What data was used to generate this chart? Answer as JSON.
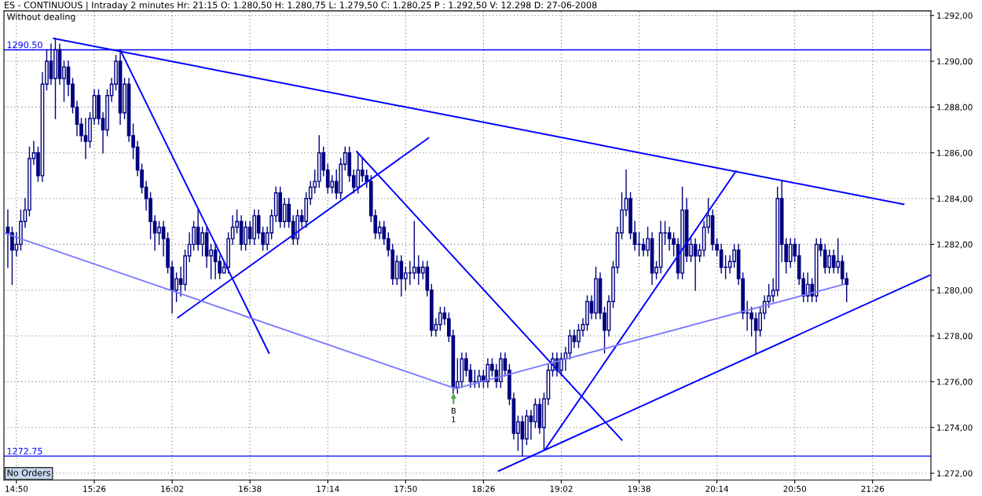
{
  "chart_data": {
    "type": "candlestick",
    "title": "ES - CONTINUOUS | Intraday 2 minutes Hr: 21:15 O: 1.280,50 H: 1.280,75 L: 1.279,50 C: 1.280,25 P : 1.292,50 V: 12.298 D: 27-06-2008",
    "series": [
      {
        "color": "#000080",
        "x": [
          14.7667,
          14.8,
          14.8333,
          14.8667,
          14.9,
          14.9333,
          14.9667,
          15.0,
          15.0333,
          15.0667,
          15.1,
          15.1333,
          15.1667,
          15.2,
          15.2333,
          15.2667,
          15.3,
          15.3333,
          15.3667,
          15.4,
          15.4333,
          15.4667,
          15.5,
          15.5333,
          15.5667,
          15.6,
          15.6333,
          15.6667,
          15.7,
          15.7333,
          15.7667,
          15.8,
          15.8333,
          15.8667,
          15.9,
          15.9333,
          15.9667,
          16.0,
          16.0333,
          16.0667,
          16.1,
          16.1333,
          16.1667,
          16.2,
          16.2333,
          16.2667,
          16.3,
          16.3333,
          16.3667,
          16.4,
          16.4333,
          16.4667,
          16.5,
          16.5333,
          16.5667,
          16.6,
          16.6333,
          16.6667,
          16.7,
          16.7333,
          16.7667,
          16.8,
          16.8333,
          16.8667,
          16.9,
          16.9333,
          16.9667,
          17.0,
          17.0333,
          17.0667,
          17.1,
          17.1333,
          17.1667,
          17.2,
          17.2333,
          17.2667,
          17.3,
          17.3333,
          17.3667,
          17.4,
          17.4333,
          17.4667,
          17.5,
          17.5333,
          17.5667,
          17.6,
          17.6333,
          17.6667,
          17.7,
          17.7333,
          17.7667,
          17.8,
          17.8333,
          17.8667,
          17.9,
          17.9333,
          17.9667,
          18.0,
          18.0333,
          18.0667,
          18.1,
          18.1333,
          18.1667,
          18.2,
          18.2333,
          18.2667,
          18.3,
          18.3333,
          18.3667,
          18.4,
          18.4333,
          18.4667,
          18.5,
          18.5333,
          18.5667,
          18.6,
          18.6333,
          18.6667,
          18.7,
          18.7333,
          18.7667,
          18.8,
          18.8333,
          18.8667,
          18.9,
          18.9333,
          18.9667,
          19.0,
          19.0333,
          19.0667,
          19.1,
          19.1333,
          19.1667,
          19.2,
          19.2333,
          19.2667,
          19.3,
          19.3333,
          19.3667,
          19.4,
          19.4333,
          19.4667,
          19.5,
          19.5333,
          19.5667,
          19.6,
          19.6333,
          19.6667,
          19.7,
          19.7333,
          19.7667,
          19.8,
          19.8333,
          19.8667,
          19.9,
          19.9333,
          19.9667,
          20.0,
          20.0333,
          20.0667,
          20.1,
          20.1333,
          20.1667,
          20.2,
          20.2333,
          20.2667,
          20.3,
          20.3333,
          20.3667,
          20.4,
          20.4333,
          20.4667,
          20.5,
          20.5333,
          20.5667,
          20.6,
          20.6333,
          20.6667,
          20.7,
          20.7333,
          20.7667,
          20.8,
          20.8333,
          20.8667,
          20.9,
          20.9333,
          20.9667,
          21.0,
          21.0333,
          21.0667,
          21.1,
          21.1333,
          21.1667,
          21.2,
          21.2333
        ],
        "ohlc": [
          [
            1282.75,
            1283.5,
            1281.0,
            1282.5
          ],
          [
            1282.5,
            1282.75,
            1280.25,
            1281.75
          ],
          [
            1281.75,
            1282.5,
            1281.5,
            1282.0
          ],
          [
            1282.0,
            1283.5,
            1281.75,
            1283.0
          ],
          [
            1283.0,
            1284.0,
            1282.75,
            1283.5
          ],
          [
            1283.5,
            1286.25,
            1283.25,
            1285.75
          ],
          [
            1285.75,
            1286.5,
            1285.5,
            1286.0
          ],
          [
            1286.0,
            1286.25,
            1284.75,
            1285.0
          ],
          [
            1285.0,
            1289.5,
            1284.75,
            1289.0
          ],
          [
            1289.0,
            1290.5,
            1288.75,
            1290.0
          ],
          [
            1290.0,
            1290.75,
            1289.0,
            1289.25
          ],
          [
            1289.25,
            1291.0,
            1287.5,
            1290.5
          ],
          [
            1290.5,
            1290.75,
            1289.0,
            1289.25
          ],
          [
            1289.25,
            1290.0,
            1288.25,
            1289.75
          ],
          [
            1289.75,
            1290.0,
            1288.5,
            1289.0
          ],
          [
            1289.0,
            1289.25,
            1287.75,
            1288.0
          ],
          [
            1288.0,
            1288.25,
            1286.75,
            1287.25
          ],
          [
            1287.25,
            1287.5,
            1286.5,
            1286.75
          ],
          [
            1286.75,
            1287.5,
            1285.75,
            1286.5
          ],
          [
            1286.5,
            1287.75,
            1286.25,
            1287.5
          ],
          [
            1287.5,
            1288.75,
            1287.25,
            1288.5
          ],
          [
            1288.5,
            1288.75,
            1287.25,
            1287.5
          ],
          [
            1287.5,
            1287.75,
            1286.0,
            1287.0
          ],
          [
            1287.0,
            1288.75,
            1286.75,
            1288.5
          ],
          [
            1288.5,
            1289.25,
            1288.25,
            1289.0
          ],
          [
            1289.0,
            1290.25,
            1288.75,
            1290.0
          ],
          [
            1290.0,
            1290.5,
            1287.25,
            1287.75
          ],
          [
            1287.75,
            1289.25,
            1287.5,
            1289.0
          ],
          [
            1289.0,
            1289.25,
            1286.5,
            1286.75
          ],
          [
            1286.75,
            1287.25,
            1285.75,
            1286.25
          ],
          [
            1286.25,
            1286.5,
            1285.0,
            1285.25
          ],
          [
            1285.25,
            1285.5,
            1284.25,
            1284.5
          ],
          [
            1284.5,
            1284.75,
            1283.5,
            1284.0
          ],
          [
            1284.0,
            1284.25,
            1282.25,
            1283.0
          ],
          [
            1283.0,
            1283.25,
            1281.75,
            1282.5
          ],
          [
            1282.5,
            1283.0,
            1282.0,
            1282.75
          ],
          [
            1282.75,
            1283.0,
            1281.5,
            1282.25
          ],
          [
            1282.25,
            1282.5,
            1280.75,
            1281.0
          ],
          [
            1281.0,
            1281.25,
            1279.0,
            1280.0
          ],
          [
            1280.0,
            1280.75,
            1279.5,
            1280.5
          ],
          [
            1280.5,
            1281.0,
            1279.75,
            1280.25
          ],
          [
            1280.25,
            1281.75,
            1280.0,
            1281.5
          ],
          [
            1281.5,
            1282.5,
            1281.25,
            1282.0
          ],
          [
            1282.0,
            1283.0,
            1281.75,
            1282.75
          ],
          [
            1282.75,
            1283.5,
            1281.75,
            1282.0
          ],
          [
            1282.0,
            1282.75,
            1281.5,
            1282.5
          ],
          [
            1282.5,
            1282.75,
            1281.0,
            1281.5
          ],
          [
            1281.5,
            1282.0,
            1280.5,
            1281.75
          ],
          [
            1281.75,
            1282.0,
            1280.5,
            1281.25
          ],
          [
            1281.25,
            1281.5,
            1280.5,
            1280.75
          ],
          [
            1280.75,
            1281.25,
            1280.75,
            1281.0
          ],
          [
            1281.0,
            1282.5,
            1280.75,
            1282.25
          ],
          [
            1282.25,
            1283.25,
            1282.0,
            1282.75
          ],
          [
            1282.75,
            1283.5,
            1282.5,
            1283.0
          ],
          [
            1283.0,
            1283.25,
            1281.75,
            1282.0
          ],
          [
            1282.0,
            1283.0,
            1281.75,
            1282.75
          ],
          [
            1282.75,
            1283.0,
            1282.0,
            1282.25
          ],
          [
            1282.25,
            1283.5,
            1282.0,
            1283.25
          ],
          [
            1283.25,
            1283.5,
            1282.25,
            1282.5
          ],
          [
            1282.5,
            1282.75,
            1281.75,
            1282.0
          ],
          [
            1282.0,
            1282.75,
            1281.75,
            1282.5
          ],
          [
            1282.5,
            1283.5,
            1282.25,
            1283.25
          ],
          [
            1283.25,
            1284.5,
            1283.0,
            1284.25
          ],
          [
            1284.25,
            1284.5,
            1282.75,
            1283.0
          ],
          [
            1283.0,
            1284.0,
            1282.75,
            1283.75
          ],
          [
            1283.75,
            1284.0,
            1282.75,
            1283.0
          ],
          [
            1283.0,
            1283.25,
            1282.0,
            1282.25
          ],
          [
            1282.25,
            1283.5,
            1282.0,
            1283.25
          ],
          [
            1283.25,
            1283.5,
            1282.75,
            1283.0
          ],
          [
            1283.0,
            1284.25,
            1282.75,
            1284.0
          ],
          [
            1284.0,
            1284.75,
            1283.75,
            1284.5
          ],
          [
            1284.5,
            1285.25,
            1284.25,
            1284.75
          ],
          [
            1284.75,
            1286.75,
            1284.5,
            1286.0
          ],
          [
            1286.0,
            1286.25,
            1285.0,
            1285.25
          ],
          [
            1285.25,
            1285.5,
            1284.25,
            1284.5
          ],
          [
            1284.5,
            1285.0,
            1284.25,
            1284.75
          ],
          [
            1284.75,
            1285.25,
            1284.0,
            1284.25
          ],
          [
            1284.25,
            1285.75,
            1284.0,
            1285.5
          ],
          [
            1285.5,
            1286.25,
            1285.25,
            1286.0
          ],
          [
            1286.0,
            1286.25,
            1284.75,
            1285.0
          ],
          [
            1285.0,
            1285.25,
            1284.25,
            1284.5
          ],
          [
            1284.5,
            1286.0,
            1284.25,
            1285.25
          ],
          [
            1285.25,
            1285.75,
            1284.75,
            1285.0
          ],
          [
            1285.0,
            1285.25,
            1284.5,
            1284.75
          ],
          [
            1284.75,
            1285.0,
            1283.0,
            1283.25
          ],
          [
            1283.25,
            1283.5,
            1282.25,
            1282.5
          ],
          [
            1282.5,
            1283.0,
            1282.25,
            1282.75
          ],
          [
            1282.75,
            1283.0,
            1282.0,
            1282.25
          ],
          [
            1282.25,
            1282.5,
            1281.5,
            1281.75
          ],
          [
            1281.75,
            1282.0,
            1280.25,
            1280.5
          ],
          [
            1280.5,
            1281.5,
            1280.25,
            1281.25
          ],
          [
            1281.25,
            1281.5,
            1279.75,
            1280.5
          ],
          [
            1280.5,
            1281.0,
            1280.0,
            1280.75
          ],
          [
            1280.75,
            1281.25,
            1280.25,
            1280.75
          ],
          [
            1280.75,
            1283.0,
            1280.5,
            1281.0
          ],
          [
            1281.0,
            1281.5,
            1280.25,
            1280.75
          ],
          [
            1280.75,
            1281.25,
            1280.5,
            1281.0
          ],
          [
            1281.0,
            1281.25,
            1279.75,
            1280.0
          ],
          [
            1280.0,
            1280.25,
            1278.0,
            1278.25
          ],
          [
            1278.25,
            1278.75,
            1278.0,
            1278.5
          ],
          [
            1278.5,
            1279.25,
            1278.25,
            1279.0
          ],
          [
            1279.0,
            1279.25,
            1278.5,
            1278.75
          ],
          [
            1278.75,
            1279.0,
            1277.75,
            1278.0
          ],
          [
            1278.0,
            1278.25,
            1275.5,
            1275.75
          ],
          [
            1275.75,
            1277.0,
            1275.5,
            1276.0
          ],
          [
            1276.0,
            1277.25,
            1275.75,
            1277.0
          ],
          [
            1277.0,
            1277.25,
            1276.25,
            1276.5
          ],
          [
            1276.5,
            1276.75,
            1275.75,
            1276.0
          ],
          [
            1276.0,
            1276.5,
            1275.75,
            1276.0
          ],
          [
            1276.0,
            1276.5,
            1275.75,
            1276.25
          ],
          [
            1276.25,
            1276.5,
            1275.75,
            1276.0
          ],
          [
            1276.0,
            1277.0,
            1275.75,
            1276.75
          ],
          [
            1276.75,
            1277.0,
            1276.25,
            1276.5
          ],
          [
            1276.5,
            1276.75,
            1275.75,
            1276.0
          ],
          [
            1276.0,
            1277.25,
            1275.75,
            1277.0
          ],
          [
            1277.0,
            1277.25,
            1276.25,
            1276.5
          ],
          [
            1276.5,
            1276.75,
            1275.0,
            1275.25
          ],
          [
            1275.25,
            1275.5,
            1273.5,
            1273.75
          ],
          [
            1273.75,
            1274.5,
            1273.0,
            1274.25
          ],
          [
            1274.25,
            1274.5,
            1272.75,
            1273.5
          ],
          [
            1273.5,
            1274.75,
            1273.25,
            1274.5
          ],
          [
            1274.5,
            1274.75,
            1273.5,
            1274.25
          ],
          [
            1274.25,
            1275.25,
            1274.0,
            1275.0
          ],
          [
            1275.0,
            1275.25,
            1273.75,
            1274.0
          ],
          [
            1274.0,
            1275.5,
            1273.0,
            1275.25
          ],
          [
            1275.25,
            1276.75,
            1275.0,
            1276.5
          ],
          [
            1276.5,
            1277.25,
            1276.25,
            1277.0
          ],
          [
            1277.0,
            1277.25,
            1276.25,
            1276.5
          ],
          [
            1276.5,
            1277.25,
            1276.25,
            1277.0
          ],
          [
            1277.0,
            1277.5,
            1276.5,
            1277.25
          ],
          [
            1277.25,
            1278.25,
            1277.0,
            1278.0
          ],
          [
            1278.0,
            1278.25,
            1277.5,
            1277.75
          ],
          [
            1277.75,
            1278.5,
            1277.5,
            1278.25
          ],
          [
            1278.25,
            1278.75,
            1278.0,
            1278.5
          ],
          [
            1278.5,
            1279.75,
            1278.25,
            1279.5
          ],
          [
            1279.5,
            1279.75,
            1278.75,
            1279.0
          ],
          [
            1279.0,
            1281.0,
            1278.75,
            1280.5
          ],
          [
            1280.5,
            1280.75,
            1278.75,
            1279.0
          ],
          [
            1279.0,
            1279.25,
            1277.25,
            1278.25
          ],
          [
            1278.25,
            1279.75,
            1278.0,
            1279.5
          ],
          [
            1279.5,
            1281.25,
            1279.25,
            1281.0
          ],
          [
            1281.0,
            1282.75,
            1280.75,
            1282.5
          ],
          [
            1282.5,
            1284.25,
            1282.25,
            1283.5
          ],
          [
            1283.5,
            1285.25,
            1283.25,
            1284.0
          ],
          [
            1284.0,
            1284.25,
            1282.25,
            1282.5
          ],
          [
            1282.5,
            1283.0,
            1281.75,
            1282.0
          ],
          [
            1282.0,
            1282.5,
            1281.5,
            1282.0
          ],
          [
            1282.0,
            1282.25,
            1281.5,
            1281.75
          ],
          [
            1281.75,
            1282.75,
            1281.5,
            1282.25
          ],
          [
            1282.25,
            1282.5,
            1280.25,
            1280.75
          ],
          [
            1280.75,
            1281.25,
            1280.5,
            1281.0
          ],
          [
            1281.0,
            1283.0,
            1280.75,
            1282.5
          ],
          [
            1282.5,
            1283.0,
            1282.0,
            1282.5
          ],
          [
            1282.5,
            1282.75,
            1281.75,
            1282.25
          ],
          [
            1282.25,
            1282.5,
            1281.5,
            1282.0
          ],
          [
            1282.0,
            1282.25,
            1280.5,
            1280.75
          ],
          [
            1280.75,
            1284.5,
            1280.5,
            1283.5
          ],
          [
            1283.5,
            1284.0,
            1281.25,
            1281.5
          ],
          [
            1281.5,
            1282.25,
            1281.25,
            1282.0
          ],
          [
            1282.0,
            1282.25,
            1280.0,
            1281.5
          ],
          [
            1281.5,
            1282.0,
            1281.25,
            1281.75
          ],
          [
            1281.75,
            1283.0,
            1281.5,
            1282.75
          ],
          [
            1282.75,
            1284.0,
            1282.5,
            1283.25
          ],
          [
            1283.25,
            1283.5,
            1281.75,
            1282.0
          ],
          [
            1282.0,
            1282.25,
            1281.5,
            1281.75
          ],
          [
            1281.75,
            1282.0,
            1280.75,
            1281.0
          ],
          [
            1281.0,
            1281.5,
            1280.5,
            1281.0
          ],
          [
            1281.0,
            1281.5,
            1280.75,
            1281.25
          ],
          [
            1281.25,
            1282.0,
            1281.0,
            1281.75
          ],
          [
            1281.75,
            1282.0,
            1280.25,
            1280.5
          ],
          [
            1280.5,
            1280.75,
            1278.75,
            1279.0
          ],
          [
            1279.0,
            1279.5,
            1278.25,
            1279.0
          ],
          [
            1279.0,
            1279.25,
            1278.0,
            1278.75
          ],
          [
            1278.75,
            1279.0,
            1277.25,
            1278.25
          ],
          [
            1278.25,
            1279.25,
            1278.0,
            1279.0
          ],
          [
            1279.0,
            1279.75,
            1278.75,
            1279.5
          ],
          [
            1279.5,
            1280.25,
            1279.25,
            1279.75
          ],
          [
            1279.75,
            1280.5,
            1279.5,
            1280.0
          ],
          [
            1280.0,
            1284.5,
            1279.75,
            1284.0
          ],
          [
            1284.0,
            1284.75,
            1281.25,
            1282.0
          ],
          [
            1282.0,
            1282.25,
            1280.75,
            1281.25
          ],
          [
            1281.25,
            1282.25,
            1281.0,
            1282.0
          ],
          [
            1282.0,
            1282.25,
            1281.25,
            1281.5
          ],
          [
            1281.5,
            1282.0,
            1280.25,
            1280.5
          ],
          [
            1280.5,
            1280.75,
            1279.5,
            1279.75
          ],
          [
            1279.75,
            1280.75,
            1279.5,
            1280.25
          ],
          [
            1280.25,
            1280.5,
            1279.5,
            1279.75
          ],
          [
            1279.75,
            1282.25,
            1279.5,
            1282.0
          ],
          [
            1282.0,
            1282.25,
            1281.5,
            1281.75
          ],
          [
            1281.75,
            1282.0,
            1280.75,
            1281.0
          ],
          [
            1281.0,
            1281.75,
            1280.75,
            1281.5
          ],
          [
            1281.5,
            1281.75,
            1280.75,
            1281.0
          ],
          [
            1281.0,
            1282.25,
            1280.75,
            1281.25
          ],
          [
            1281.25,
            1281.5,
            1280.25,
            1280.5
          ],
          [
            1280.5,
            1280.75,
            1279.5,
            1280.25
          ]
        ]
      },
      {
        "type": "line",
        "color": "#0000ff",
        "x": [
          15.12,
          21.673
        ],
        "values": [
          1291.0,
          1283.75
        ]
      },
      {
        "type": "line",
        "color": "#0000ff",
        "x": [
          18.55,
          21.873
        ],
        "values": [
          1272.1,
          1280.65
        ]
      },
      {
        "type": "line",
        "color": "#0000ff",
        "x": [
          15.637,
          16.78
        ],
        "values": [
          1290.45,
          1277.25
        ]
      },
      {
        "type": "line",
        "color": "#0000ff",
        "x": [
          16.077,
          18.01
        ],
        "values": [
          1278.8,
          1286.65
        ]
      },
      {
        "type": "line",
        "color": "#0000ff",
        "x": [
          17.457,
          19.5
        ],
        "values": [
          1286.05,
          1273.45
        ]
      },
      {
        "type": "line",
        "color": "#0000ff",
        "x": [
          18.91,
          20.38
        ],
        "values": [
          1273.05,
          1285.2
        ]
      },
      {
        "type": "line",
        "color": "#7b7bff",
        "x": [
          14.7367,
          18.22,
          21.21
        ],
        "values": [
          1282.5,
          1275.7,
          1280.25
        ]
      }
    ],
    "xlim": [
      14.7367,
      21.883
    ],
    "xticks": [
      {
        "value": 14.8333,
        "label": "14:50"
      },
      {
        "value": 15.4333,
        "label": "15:26"
      },
      {
        "value": 16.0333,
        "label": "16:02"
      },
      {
        "value": 16.6333,
        "label": "16:38"
      },
      {
        "value": 17.2333,
        "label": "17:14"
      },
      {
        "value": 17.8333,
        "label": "17:50"
      },
      {
        "value": 18.4333,
        "label": "18:26"
      },
      {
        "value": 19.0333,
        "label": "19:02"
      },
      {
        "value": 19.6333,
        "label": "19:38"
      },
      {
        "value": 20.2333,
        "label": "20:14"
      },
      {
        "value": 20.8333,
        "label": "20:50"
      },
      {
        "value": 21.4333,
        "label": "21:26"
      }
    ],
    "ylim": [
      1271.7,
      1292.2
    ],
    "yticks": [
      {
        "value": 1272,
        "label": "1.272,00"
      },
      {
        "value": 1274,
        "label": "1.274,00"
      },
      {
        "value": 1276,
        "label": "1.276,00"
      },
      {
        "value": 1278,
        "label": "1.278,00"
      },
      {
        "value": 1280,
        "label": "1.280,00"
      },
      {
        "value": 1282,
        "label": "1.282,00"
      },
      {
        "value": 1284,
        "label": "1.284,00"
      },
      {
        "value": 1286,
        "label": "1.286,00"
      },
      {
        "value": 1288,
        "label": "1.288,00"
      },
      {
        "value": 1290,
        "label": "1.290,00"
      },
      {
        "value": 1292,
        "label": "1.292,00"
      }
    ],
    "ref_lines": [
      {
        "axis": "y",
        "value": 1290.5,
        "label": "1290.50",
        "color": "#0000ff"
      },
      {
        "axis": "y",
        "value": 1272.75,
        "label": "1272.75",
        "color": "#0000ff"
      }
    ],
    "annotations": [
      "Without dealing",
      "No Orders",
      "B\n1"
    ],
    "grid": true
  }
}
